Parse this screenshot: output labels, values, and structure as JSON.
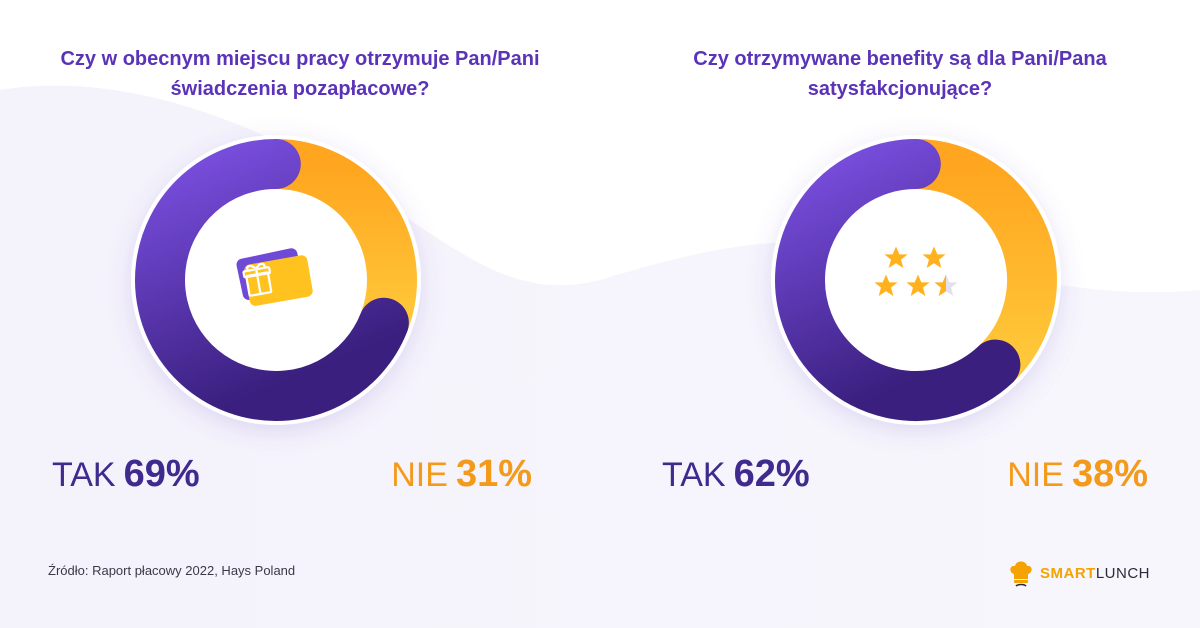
{
  "colors": {
    "purple": "#4b2a98",
    "purple_light": "#7a4fe0",
    "orange": "#ffa51f",
    "orange_light": "#ffc83a",
    "title": "#5a33b8",
    "yes_text": "#3f2a8e",
    "no_text": "#f39a1a"
  },
  "chart_data": [
    {
      "type": "pie",
      "title": "Czy w obecnym miejscu pracy otrzymuje Pan/Pani świadczenia pozapłacowe?",
      "categories": [
        "TAK",
        "NIE"
      ],
      "values": [
        69,
        31
      ],
      "value_labels": [
        "69%",
        "31%"
      ],
      "colors": [
        "#4b2a98",
        "#ffa51f"
      ],
      "center_icon": "gift-card-icon"
    },
    {
      "type": "pie",
      "title": "Czy otrzymywane benefity są dla Pani/Pana satysfakcjonujące?",
      "categories": [
        "TAK",
        "NIE"
      ],
      "values": [
        62,
        38
      ],
      "value_labels": [
        "62%",
        "38%"
      ],
      "colors": [
        "#4b2a98",
        "#ffa51f"
      ],
      "center_icon": "rating-stars-icon"
    }
  ],
  "footer": {
    "source": "Źródło: Raport płacowy 2022, Hays Poland",
    "brand_part1": "SMART",
    "brand_part2": "LUNCH",
    "logo_icon": "chef-hat-icon"
  }
}
